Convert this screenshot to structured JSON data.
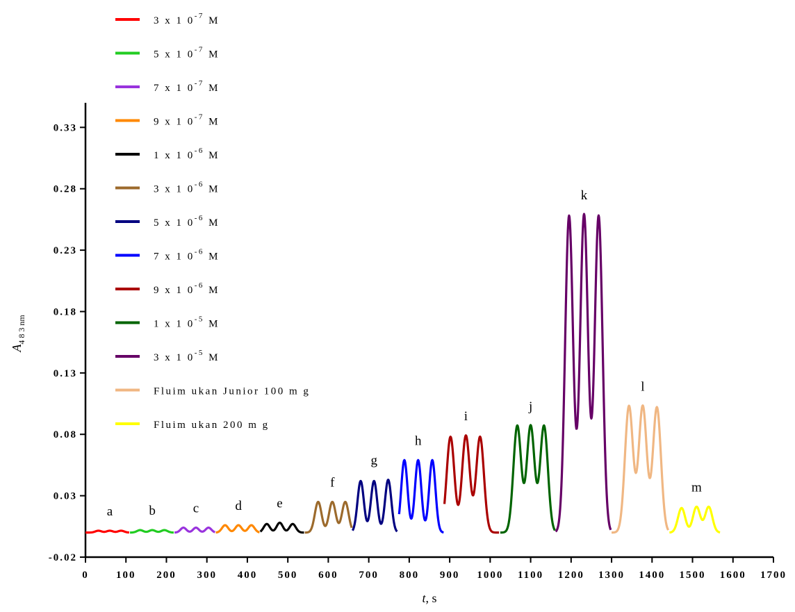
{
  "chart_data": {
    "type": "line",
    "title": "",
    "xlabel": "t, s",
    "ylabel": "A483 nm",
    "xlim": [
      0,
      1700
    ],
    "ylim": [
      -0.02,
      0.35
    ],
    "x_ticks": [
      0,
      100,
      200,
      300,
      400,
      500,
      600,
      700,
      800,
      900,
      1000,
      1100,
      1200,
      1300,
      1400,
      1500,
      1600,
      1700
    ],
    "x_tick_labels": [
      "0",
      "100",
      "200",
      "300",
      "400",
      "500",
      "600",
      "700",
      "800",
      "900",
      "1000",
      "1100",
      "1200",
      "1300",
      "1400",
      "1500",
      "1600",
      "1700"
    ],
    "y_ticks": [
      -0.02,
      0.03,
      0.08,
      0.13,
      0.18,
      0.23,
      0.28,
      0.33
    ],
    "y_tick_labels": [
      "-0.02",
      "0.03",
      "0.08",
      "0.13",
      "0.18",
      "0.23",
      "0.28",
      "0.33"
    ],
    "legend_position": "top-left",
    "series": [
      {
        "name": "3 x 10-7 M",
        "mant": "3 x 1 0",
        "exp": "-7",
        "unit": "M",
        "color": "#ff0000",
        "label": "a",
        "x_range": [
          0,
          108
        ],
        "baseline": 0.0,
        "peaks": [
          {
            "x": 32,
            "y": 0.0015
          },
          {
            "x": 60,
            "y": 0.0015
          },
          {
            "x": 88,
            "y": 0.0015
          }
        ]
      },
      {
        "name": "5 x 10-7 M",
        "mant": "5 x 1 0",
        "exp": "-7",
        "unit": "M",
        "color": "#22cc22",
        "label": "b",
        "x_range": [
          110,
          218
        ],
        "baseline": 0.0,
        "peaks": [
          {
            "x": 135,
            "y": 0.002
          },
          {
            "x": 165,
            "y": 0.002
          },
          {
            "x": 195,
            "y": 0.002
          }
        ]
      },
      {
        "name": "7 x 10-7 M",
        "mant": "7 x 1 0",
        "exp": "-7",
        "unit": "M",
        "color": "#9933dd",
        "label": "c",
        "x_range": [
          220,
          320
        ],
        "baseline": 0.0,
        "peaks": [
          {
            "x": 242,
            "y": 0.004
          },
          {
            "x": 273,
            "y": 0.004
          },
          {
            "x": 304,
            "y": 0.004
          }
        ]
      },
      {
        "name": "9 x 10-7 M",
        "mant": "9 x 1 0",
        "exp": "-7",
        "unit": "M",
        "color": "#ff8800",
        "label": "d",
        "x_range": [
          322,
          430
        ],
        "baseline": 0.0,
        "peaks": [
          {
            "x": 345,
            "y": 0.006
          },
          {
            "x": 378,
            "y": 0.006
          },
          {
            "x": 410,
            "y": 0.006
          }
        ]
      },
      {
        "name": "1 x 10-6 M",
        "mant": "1 x 1 0",
        "exp": "-6",
        "unit": "M",
        "color": "#000000",
        "label": "e",
        "x_range": [
          432,
          540
        ],
        "baseline": 0.0,
        "peaks": [
          {
            "x": 448,
            "y": 0.007
          },
          {
            "x": 480,
            "y": 0.008
          },
          {
            "x": 512,
            "y": 0.007
          }
        ]
      },
      {
        "name": "3 x 10-6 M",
        "mant": "3 x 1 0",
        "exp": "-6",
        "unit": "M",
        "color": "#9c6a2c",
        "label": "f",
        "x_range": [
          542,
          658
        ],
        "baseline": 0.0,
        "peaks": [
          {
            "x": 575,
            "y": 0.025
          },
          {
            "x": 610,
            "y": 0.025
          },
          {
            "x": 642,
            "y": 0.025
          }
        ]
      },
      {
        "name": "5 x 10-6 M",
        "mant": "5 x 1 0",
        "exp": "-6",
        "unit": "M",
        "color": "#000080",
        "label": "g",
        "x_range": [
          660,
          770
        ],
        "baseline": 0.0,
        "peaks": [
          {
            "x": 680,
            "y": 0.042
          },
          {
            "x": 713,
            "y": 0.042
          },
          {
            "x": 748,
            "y": 0.043
          }
        ]
      },
      {
        "name": "7 x 10-6 M",
        "mant": "7 x 1 0",
        "exp": "-6",
        "unit": "M",
        "color": "#0000ff",
        "label": "h",
        "x_range": [
          775,
          885
        ],
        "baseline": 0.0,
        "peaks": [
          {
            "x": 788,
            "y": 0.059
          },
          {
            "x": 822,
            "y": 0.059
          },
          {
            "x": 857,
            "y": 0.059
          }
        ]
      },
      {
        "name": "9 x 10-6 M",
        "mant": "9 x 1 0",
        "exp": "-6",
        "unit": "M",
        "color": "#aa0000",
        "label": "i",
        "x_range": [
          887,
          1022
        ],
        "baseline": 0.0,
        "peaks": [
          {
            "x": 902,
            "y": 0.078
          },
          {
            "x": 940,
            "y": 0.079
          },
          {
            "x": 975,
            "y": 0.078
          }
        ]
      },
      {
        "name": "1 x 10-5 M",
        "mant": "1 x 1 0",
        "exp": "-5",
        "unit": "M",
        "color": "#006400",
        "label": "j",
        "x_range": [
          1025,
          1160
        ],
        "baseline": 0.0,
        "peaks": [
          {
            "x": 1067,
            "y": 0.087
          },
          {
            "x": 1100,
            "y": 0.087
          },
          {
            "x": 1133,
            "y": 0.087
          }
        ]
      },
      {
        "name": "3 x 10-5 M",
        "mant": "3 x 1 0",
        "exp": "-5",
        "unit": "M",
        "color": "#660066",
        "label": "k",
        "x_range": [
          1162,
          1298
        ],
        "baseline": 0.0,
        "peaks": [
          {
            "x": 1195,
            "y": 0.258
          },
          {
            "x": 1232,
            "y": 0.259
          },
          {
            "x": 1268,
            "y": 0.258
          }
        ]
      },
      {
        "name": "Fluimukan Junior 100 mg",
        "text": "Fluim ukan Junior 100 m g",
        "color": "#f0b783",
        "label": "l",
        "x_range": [
          1300,
          1440
        ],
        "baseline": 0.0,
        "peaks": [
          {
            "x": 1343,
            "y": 0.103
          },
          {
            "x": 1377,
            "y": 0.103
          },
          {
            "x": 1412,
            "y": 0.102
          }
        ]
      },
      {
        "name": "Fluimukan 200 mg",
        "text": "Fluim ukan 200 m g",
        "color": "#ffff00",
        "label": "m",
        "x_range": [
          1443,
          1568
        ],
        "baseline": 0.0,
        "peaks": [
          {
            "x": 1473,
            "y": 0.02
          },
          {
            "x": 1510,
            "y": 0.021
          },
          {
            "x": 1540,
            "y": 0.021
          }
        ]
      }
    ]
  }
}
